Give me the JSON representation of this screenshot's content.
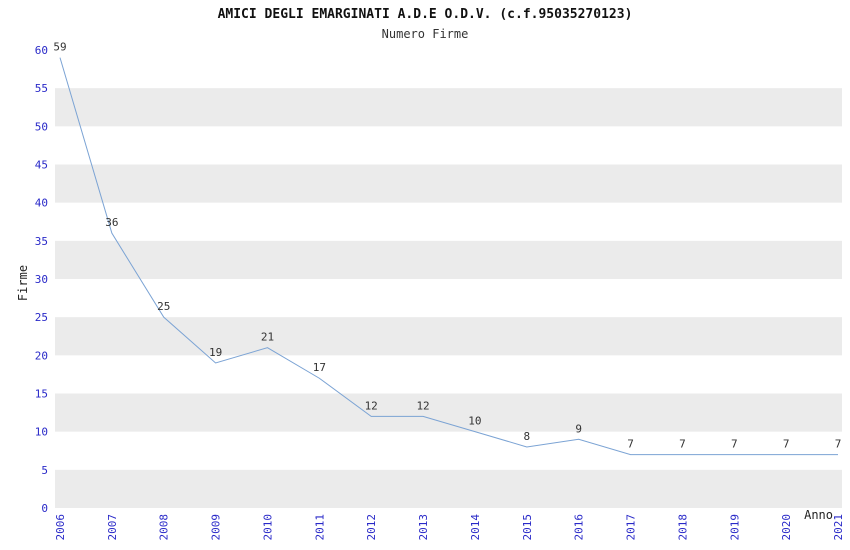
{
  "chart_data": {
    "type": "line",
    "title": "AMICI DEGLI EMARGINATI A.D.E O.D.V. (c.f.95035270123)",
    "subtitle": "Numero Firme",
    "xlabel": "Anno",
    "ylabel": "Firme",
    "categories": [
      "2006",
      "2007",
      "2008",
      "2009",
      "2010",
      "2011",
      "2012",
      "2013",
      "2014",
      "2015",
      "2016",
      "2017",
      "2018",
      "2019",
      "2020",
      "2021"
    ],
    "values": [
      59,
      36,
      25,
      19,
      21,
      17,
      12,
      12,
      10,
      8,
      9,
      7,
      7,
      7,
      7,
      7
    ],
    "ylim": [
      0,
      60
    ],
    "ytick_step": 5,
    "grid": "horizontal-alternating-bands",
    "legend": "none",
    "colors": {
      "line": "#7ba3d4",
      "tick_labels": "#2929c8",
      "band": "#ebebeb",
      "data_labels": "#333333",
      "background": "#ffffff"
    }
  }
}
